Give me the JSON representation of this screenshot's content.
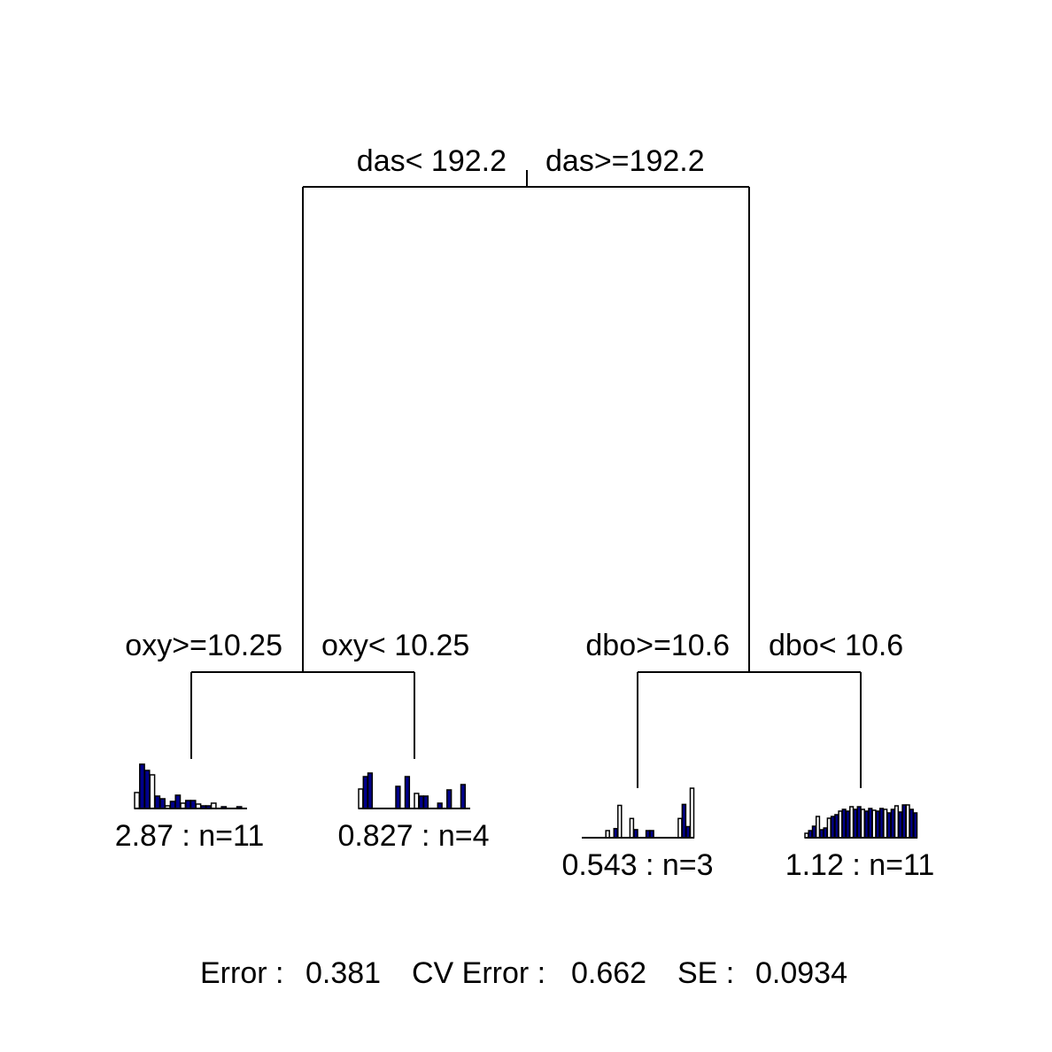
{
  "tree": {
    "root": {
      "left_split": "das< 192.2",
      "right_split": "das>=192.2"
    },
    "left_node": {
      "left_split": "oxy>=10.25",
      "right_split": "oxy< 10.25"
    },
    "right_node": {
      "left_split": "dbo>=10.6",
      "right_split": "dbo< 10.6"
    },
    "leaves": [
      {
        "label": "2.87 : n=11",
        "bars": [
          0.36,
          1.0,
          0.86,
          0.76,
          0.28,
          0.22,
          0.06,
          0.16,
          0.3,
          0.12,
          0.18,
          0.18,
          0.1,
          0.06,
          0.06,
          0.12,
          0.0,
          0.04,
          0.0,
          0.0,
          0.04,
          0.0
        ]
      },
      {
        "label": "0.827 : n=4",
        "bars": [
          0.44,
          0.72,
          0.8,
          0.0,
          0.0,
          0.0,
          0.0,
          0.0,
          0.5,
          0.0,
          0.72,
          0.0,
          0.34,
          0.28,
          0.28,
          0.0,
          0.0,
          0.12,
          0.0,
          0.42,
          0.0,
          0.0,
          0.54,
          0.0
        ]
      },
      {
        "label": "0.543 : n=3",
        "bars": [
          0.0,
          0.0,
          0.0,
          0.0,
          0.0,
          0.0,
          0.14,
          0.0,
          0.18,
          0.64,
          0.0,
          0.0,
          0.38,
          0.16,
          0.0,
          0.0,
          0.14,
          0.14,
          0.0,
          0.0,
          0.0,
          0.0,
          0.0,
          0.0,
          0.38,
          0.66,
          0.22,
          0.98
        ]
      },
      {
        "label": "1.12 : n=11",
        "bars": [
          0.1,
          0.16,
          0.26,
          0.48,
          0.18,
          0.22,
          0.44,
          0.48,
          0.52,
          0.6,
          0.64,
          0.6,
          0.7,
          0.64,
          0.7,
          0.64,
          0.6,
          0.66,
          0.62,
          0.6,
          0.66,
          0.64,
          0.56,
          0.64,
          0.72,
          0.58,
          0.74,
          0.74,
          0.64,
          0.56
        ]
      }
    ]
  },
  "footer": {
    "error_label": "Error :",
    "error_value": "0.381",
    "cv_error_label": "CV Error :",
    "cv_error_value": "0.662",
    "se_label": "SE :",
    "se_value": "0.0934"
  },
  "colors": {
    "bar_dark": "#00008b",
    "bar_light": "#ffffff",
    "lines": "#000000"
  }
}
